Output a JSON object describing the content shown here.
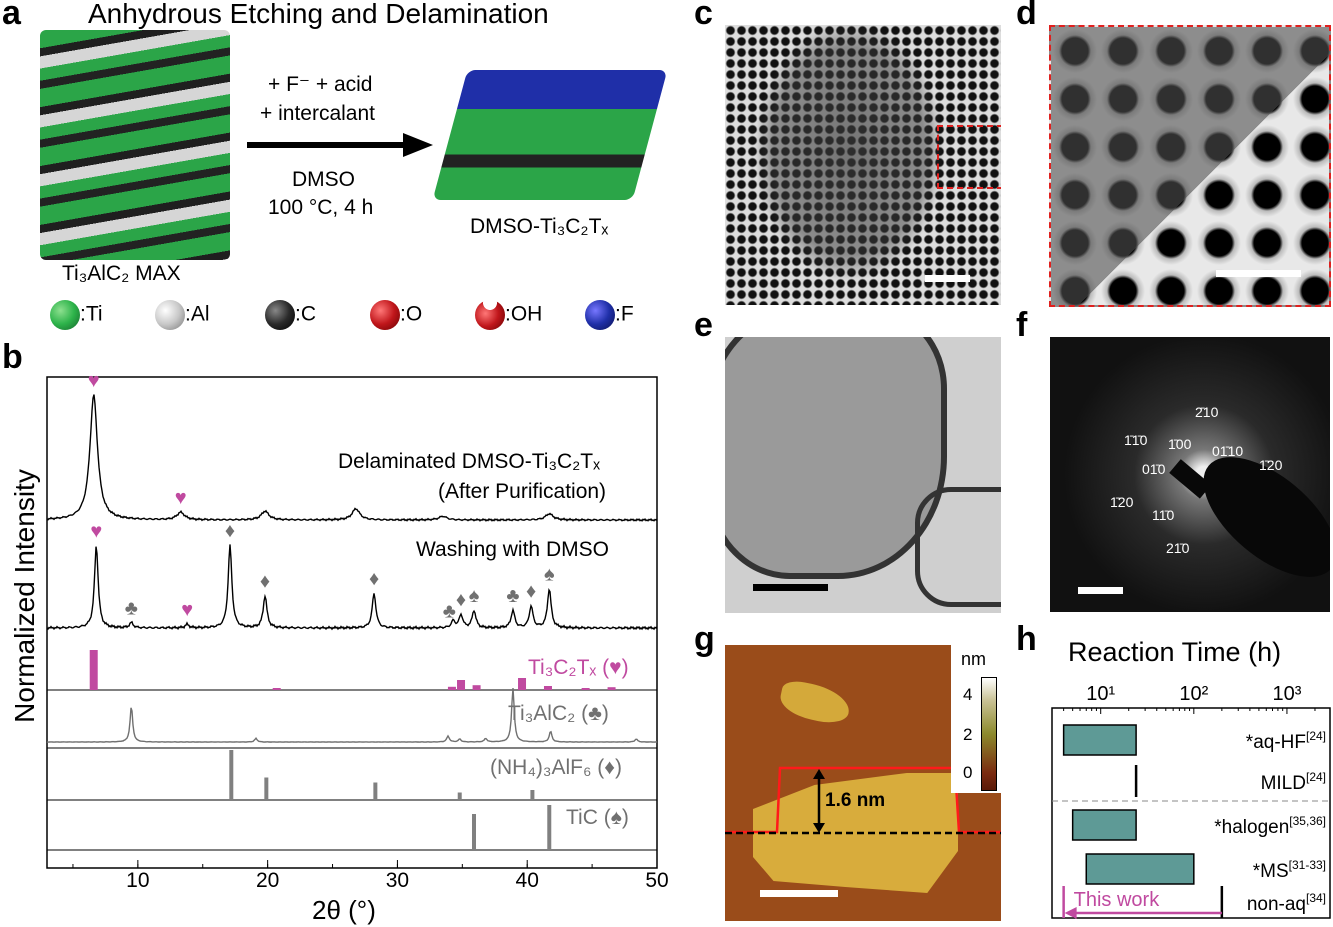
{
  "panel_labels": [
    "a",
    "b",
    "c",
    "d",
    "e",
    "f",
    "g",
    "h"
  ],
  "panel_a": {
    "title": "Anhydrous Etching and Delamination",
    "reagents_line1": "+ F⁻ + acid",
    "reagents_line2": "+ intercalant",
    "solvent": "DMSO",
    "conditions": "100 °C, 4 h",
    "start_material": "Ti₃AlC₂ MAX",
    "product": "DMSO-Ti₃C₂Tₓ",
    "legend": [
      {
        "label": ":Ti",
        "color": "#2db34a"
      },
      {
        "label": ":Al",
        "color": "#d0d0d0"
      },
      {
        "label": ":C",
        "color": "#2a2a2a"
      },
      {
        "label": ":O",
        "color": "#c0161b"
      },
      {
        "label": ":OH",
        "color": "#c0161b"
      },
      {
        "label": ":F",
        "color": "#1f2fa8"
      }
    ]
  },
  "panel_f": {
    "spot_labels": [
      "2̄10",
      "1̄1̄0",
      "1̄00",
      "01̄10",
      "1̄20",
      "01̄0",
      "1̄20",
      "11̄0",
      "21̄0"
    ]
  },
  "panel_g": {
    "colorbar_unit": "nm",
    "colorbar_ticks": [
      "4",
      "2",
      "0"
    ],
    "height_annotation": "1.6 nm"
  },
  "chart_data": [
    {
      "type": "line",
      "title": "",
      "xlabel": "2θ (°)",
      "ylabel": "Normalized Intensity",
      "xlim": [
        3,
        50
      ],
      "xticks": [
        "10",
        "20",
        "30",
        "40",
        "50"
      ],
      "series": [
        {
          "name": "Delaminated DMSO-Ti₃C₂Tₓ",
          "subtitle": "(After Purification)",
          "color": "#000000",
          "peaks": [
            [
              6.6,
              1.0
            ],
            [
              13.3,
              0.06
            ],
            [
              19.8,
              0.07
            ],
            [
              26.8,
              0.09
            ],
            [
              33.5,
              0.03
            ],
            [
              41.7,
              0.05
            ]
          ],
          "markers": [
            {
              "x": 6.6,
              "symbol": "♥"
            },
            {
              "x": 13.3,
              "symbol": "♥"
            }
          ]
        },
        {
          "name": "Washing with DMSO",
          "color": "#000000",
          "peaks": [
            [
              6.8,
              0.95
            ],
            [
              9.5,
              0.06
            ],
            [
              13.8,
              0.04
            ],
            [
              17.1,
              0.95
            ],
            [
              19.8,
              0.37
            ],
            [
              28.2,
              0.4
            ],
            [
              34.3,
              0.08
            ],
            [
              34.9,
              0.15
            ],
            [
              35.9,
              0.2
            ],
            [
              38.9,
              0.2
            ],
            [
              40.3,
              0.25
            ],
            [
              41.7,
              0.45
            ]
          ],
          "markers": [
            {
              "x": 6.8,
              "symbol": "♥"
            },
            {
              "x": 9.5,
              "symbol": "♣"
            },
            {
              "x": 13.8,
              "symbol": "♥"
            },
            {
              "x": 17.1,
              "symbol": "♦"
            },
            {
              "x": 19.8,
              "symbol": "♦"
            },
            {
              "x": 28.2,
              "symbol": "♦"
            },
            {
              "x": 34.0,
              "symbol": "♣"
            },
            {
              "x": 34.9,
              "symbol": "♦"
            },
            {
              "x": 35.9,
              "symbol": "♠"
            },
            {
              "x": 38.9,
              "symbol": "♣"
            },
            {
              "x": 40.3,
              "symbol": "♦"
            },
            {
              "x": 41.7,
              "symbol": "♠"
            }
          ]
        },
        {
          "name": "Ti₃AlC₂ (♣)",
          "color": "#707070",
          "peaks": [
            [
              9.5,
              0.6
            ],
            [
              19.1,
              0.06
            ],
            [
              33.9,
              0.1
            ],
            [
              34.8,
              0.05
            ],
            [
              36.8,
              0.06
            ],
            [
              38.9,
              0.9
            ],
            [
              41.8,
              0.18
            ],
            [
              48.4,
              0.05
            ]
          ]
        }
      ],
      "reference_sticks": [
        {
          "name": "Ti₃C₂Tₓ (♥)",
          "color": "#c04aa0",
          "sticks": [
            [
              6.6,
              1.0
            ],
            [
              20.7,
              0.05
            ],
            [
              34.2,
              0.08
            ],
            [
              34.9,
              0.25
            ],
            [
              36.1,
              0.12
            ],
            [
              39.6,
              0.3
            ],
            [
              41.6,
              0.1
            ],
            [
              44.5,
              0.05
            ],
            [
              46.5,
              0.07
            ]
          ]
        },
        {
          "name": "(NH₄)₃AlF₆ (♦)",
          "color": "#808080",
          "sticks": [
            [
              17.2,
              1.0
            ],
            [
              19.9,
              0.45
            ],
            [
              28.3,
              0.35
            ],
            [
              34.8,
              0.15
            ],
            [
              40.4,
              0.2
            ]
          ]
        },
        {
          "name": "TiC (♠)",
          "color": "#808080",
          "sticks": [
            [
              35.9,
              0.8
            ],
            [
              41.7,
              1.0
            ]
          ]
        }
      ]
    },
    {
      "type": "bar",
      "title": "Reaction Time (h)",
      "xscale": "log",
      "xlim": [
        3,
        2900
      ],
      "xticks": [
        "10¹",
        "10²",
        "10³"
      ],
      "categories": [
        "*aq-HF[24]",
        "MILD[24]",
        "*halogen[35,36]",
        "*MS[31-33]",
        "non-aq[34]"
      ],
      "bars": [
        {
          "label": "*aq-HF",
          "ref": "[24]",
          "range": [
            4,
            24
          ],
          "kind": "bar"
        },
        {
          "label": "MILD",
          "ref": "[24]",
          "range": [
            24,
            24
          ],
          "kind": "line"
        },
        {
          "label": "*halogen",
          "ref": "[35,36]",
          "range": [
            5,
            24
          ],
          "kind": "bar"
        },
        {
          "label": "*MS",
          "ref": "[31-33]",
          "range": [
            7,
            100
          ],
          "kind": "bar"
        },
        {
          "label": "non-aq",
          "ref": "[34]",
          "range": [
            200,
            200
          ],
          "kind": "line"
        }
      ],
      "annotation": {
        "text": "This work",
        "from": 200,
        "to": 4,
        "color": "#c04aa0"
      },
      "bar_color": "#5e9a96"
    }
  ]
}
